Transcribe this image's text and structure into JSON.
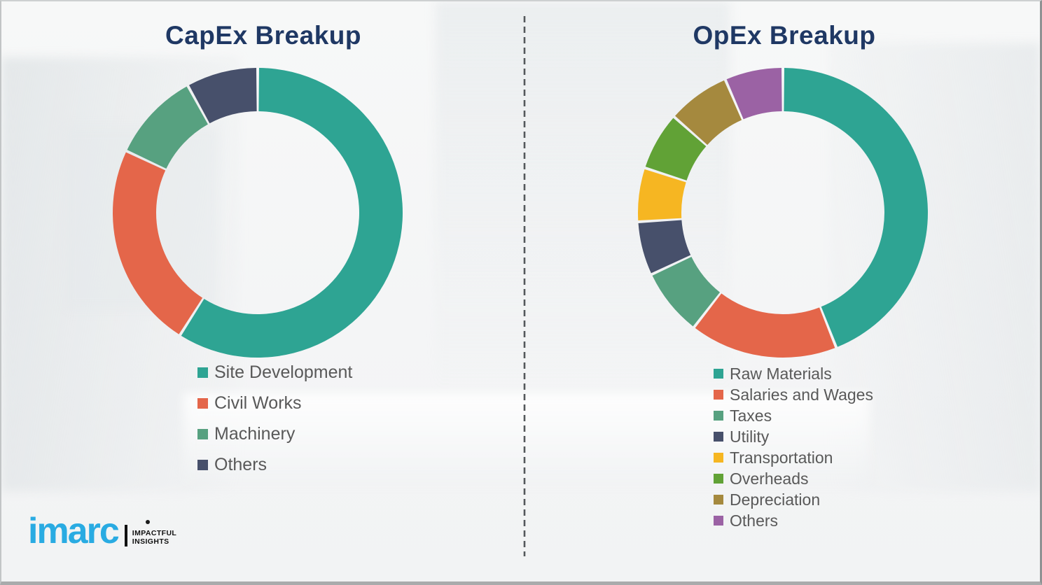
{
  "capex": {
    "title": "CapEx Breakup"
  },
  "opex": {
    "title": "OpEx Breakup"
  },
  "logo": {
    "brand": "imarc",
    "tagline_line1": "IMPACTFUL",
    "tagline_line2": "INSIGHTS"
  },
  "colors": {
    "title_navy": "#1f3864",
    "legend_text": "#595959",
    "brand_blue": "#29abe2",
    "divider_gray": "#54585b",
    "background": "#f5f6f7"
  },
  "chart_data": [
    {
      "type": "pie",
      "variant": "donut",
      "title": "CapEx Breakup",
      "labels": [
        "Site Development",
        "Civil Works",
        "Machinery",
        "Others"
      ],
      "values": [
        59,
        23,
        10,
        8
      ],
      "unit": "percent_estimated_from_arc_angles",
      "colors": [
        "#2ea493",
        "#e4664a",
        "#57a180",
        "#47506b"
      ],
      "start_angle_deg_from_top": 0,
      "direction": "clockwise",
      "legend_position": "below-left",
      "segment_gap_color": "#ffffff"
    },
    {
      "type": "pie",
      "variant": "donut",
      "title": "OpEx Breakup",
      "labels": [
        "Raw Materials",
        "Salaries and Wages",
        "Taxes",
        "Utility",
        "Transportation",
        "Overheads",
        "Depreciation",
        "Others"
      ],
      "values": [
        44,
        16.5,
        7.5,
        6,
        6,
        6.5,
        7,
        6.5
      ],
      "unit": "percent_estimated_from_arc_angles",
      "colors": [
        "#2ea493",
        "#e4664a",
        "#57a180",
        "#47506b",
        "#f6b622",
        "#61a236",
        "#a5893e",
        "#9b62a4"
      ],
      "start_angle_deg_from_top": 0,
      "direction": "clockwise",
      "legend_position": "below-left",
      "segment_gap_color": "#ffffff"
    }
  ]
}
